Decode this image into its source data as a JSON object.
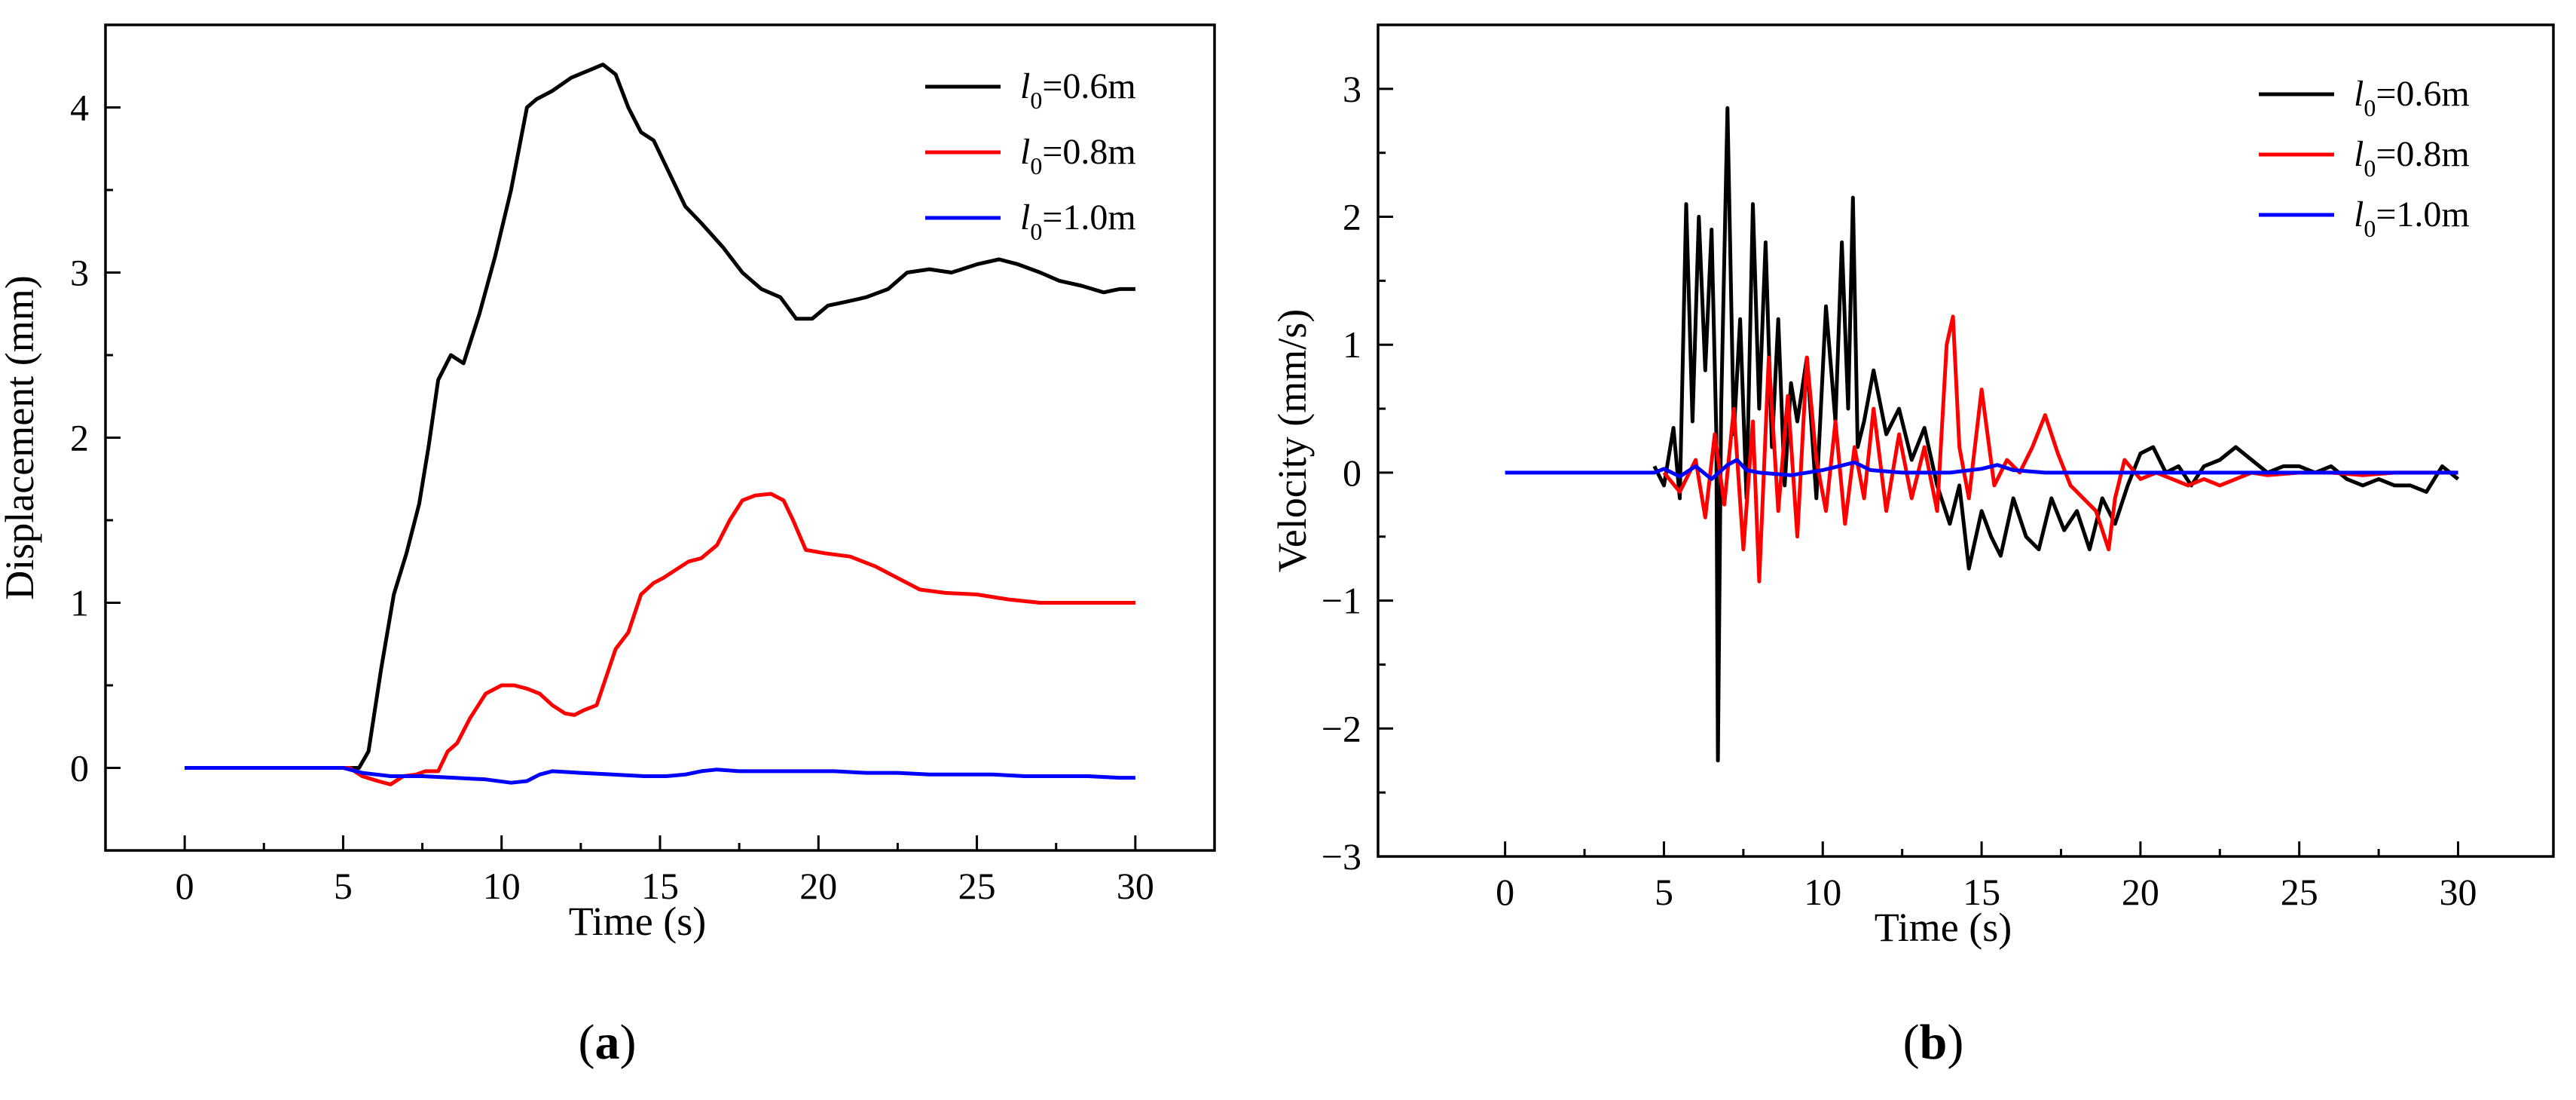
{
  "chart_data": [
    {
      "type": "line",
      "panel_label": "a",
      "xlabel": "Time (s)",
      "ylabel": "Displacement (mm)",
      "xlim": [
        -2.5,
        32.5
      ],
      "ylim": [
        -0.5,
        4.5
      ],
      "xticks": [
        0,
        5,
        10,
        15,
        20,
        25,
        30
      ],
      "yticks": [
        0,
        1,
        2,
        3,
        4
      ],
      "legend_position": "top-right",
      "series": [
        {
          "name": "l0=0.6m",
          "label_main": "l",
          "label_sub": "0",
          "label_rest": "=0.6m",
          "color": "#000000",
          "x": [
            0,
            5.5,
            5.8,
            6.2,
            6.6,
            7,
            7.4,
            7.7,
            8,
            8.4,
            8.8,
            9.3,
            9.8,
            10.3,
            10.8,
            11.1,
            11.6,
            12.2,
            12.7,
            13.2,
            13.6,
            14,
            14.4,
            14.8,
            15.3,
            15.8,
            16.3,
            17,
            17.6,
            18.2,
            18.8,
            19.3,
            19.8,
            20.3,
            20.8,
            21.5,
            22.2,
            22.8,
            23.5,
            24.2,
            25,
            25.7,
            26.3,
            27,
            27.6,
            28.3,
            29,
            29.5,
            30
          ],
          "y": [
            0,
            0,
            0.1,
            0.6,
            1.05,
            1.3,
            1.6,
            1.95,
            2.35,
            2.5,
            2.45,
            2.75,
            3.1,
            3.5,
            4.0,
            4.05,
            4.1,
            4.18,
            4.22,
            4.26,
            4.2,
            4.0,
            3.85,
            3.8,
            3.6,
            3.4,
            3.3,
            3.15,
            3.0,
            2.9,
            2.85,
            2.72,
            2.72,
            2.8,
            2.82,
            2.85,
            2.9,
            3.0,
            3.02,
            3.0,
            3.05,
            3.08,
            3.05,
            3.0,
            2.95,
            2.92,
            2.88,
            2.9,
            2.9
          ]
        },
        {
          "name": "l0=0.8m",
          "label_main": "l",
          "label_sub": "0",
          "label_rest": "=0.8m",
          "color": "#ff0000",
          "x": [
            0,
            5.2,
            5.6,
            6.1,
            6.5,
            6.9,
            7.3,
            7.6,
            8.0,
            8.3,
            8.6,
            9.0,
            9.5,
            10.0,
            10.4,
            10.8,
            11.2,
            11.6,
            12.0,
            12.3,
            12.6,
            13.0,
            13.3,
            13.6,
            14.0,
            14.4,
            14.8,
            15.1,
            15.5,
            15.9,
            16.3,
            16.8,
            17.2,
            17.6,
            18.0,
            18.5,
            18.9,
            19.2,
            19.6,
            20.2,
            21.0,
            21.8,
            22.5,
            23.2,
            24.0,
            25.0,
            26.0,
            27.0,
            28.0,
            29.0,
            30.0
          ],
          "y": [
            0,
            0,
            -0.05,
            -0.08,
            -0.1,
            -0.05,
            -0.04,
            -0.02,
            -0.02,
            0.1,
            0.15,
            0.3,
            0.45,
            0.5,
            0.5,
            0.48,
            0.45,
            0.38,
            0.33,
            0.32,
            0.35,
            0.38,
            0.55,
            0.72,
            0.82,
            1.05,
            1.12,
            1.15,
            1.2,
            1.25,
            1.27,
            1.35,
            1.5,
            1.62,
            1.65,
            1.66,
            1.62,
            1.5,
            1.32,
            1.3,
            1.28,
            1.22,
            1.15,
            1.08,
            1.06,
            1.05,
            1.02,
            1.0,
            1.0,
            1.0,
            1.0
          ]
        },
        {
          "name": "l0=1.0m",
          "label_main": "l",
          "label_sub": "0",
          "label_rest": "=1.0m",
          "color": "#0000ff",
          "x": [
            0,
            5.0,
            5.6,
            6.5,
            7.5,
            8.5,
            9.5,
            10.3,
            10.8,
            11.2,
            11.6,
            12.5,
            13.5,
            14.5,
            15.2,
            15.8,
            16.3,
            16.8,
            17.5,
            18.5,
            19.5,
            20.5,
            21.5,
            22.5,
            23.5,
            24.5,
            25.5,
            26.5,
            27.5,
            28.5,
            29.5,
            30.0
          ],
          "y": [
            0,
            0,
            -0.03,
            -0.05,
            -0.05,
            -0.06,
            -0.07,
            -0.09,
            -0.08,
            -0.04,
            -0.02,
            -0.03,
            -0.04,
            -0.05,
            -0.05,
            -0.04,
            -0.02,
            -0.01,
            -0.02,
            -0.02,
            -0.02,
            -0.02,
            -0.03,
            -0.03,
            -0.04,
            -0.04,
            -0.04,
            -0.05,
            -0.05,
            -0.05,
            -0.06,
            -0.06
          ]
        }
      ]
    },
    {
      "type": "line",
      "panel_label": "b",
      "xlabel": "Time (s)",
      "ylabel": "Velocity (mm/s)",
      "xlim": [
        -4,
        33
      ],
      "ylim": [
        -3,
        3.5
      ],
      "xticks": [
        0,
        5,
        10,
        15,
        20,
        25,
        30
      ],
      "yticks": [
        -3,
        -2,
        -1,
        0,
        1,
        2,
        3
      ],
      "legend_position": "top-right",
      "series": [
        {
          "name": "l0=0.6m",
          "label_main": "l",
          "label_sub": "0",
          "label_rest": "=0.6m",
          "color": "#000000",
          "x": [
            4.7,
            5.0,
            5.3,
            5.5,
            5.7,
            5.9,
            6.1,
            6.3,
            6.5,
            6.65,
            6.7,
            6.8,
            7.0,
            7.2,
            7.4,
            7.6,
            7.8,
            8.0,
            8.2,
            8.4,
            8.6,
            8.8,
            9.0,
            9.2,
            9.5,
            9.8,
            10.1,
            10.4,
            10.6,
            10.8,
            10.95,
            11.1,
            11.3,
            11.6,
            12.0,
            12.4,
            12.8,
            13.2,
            13.6,
            14.0,
            14.3,
            14.6,
            15.0,
            15.3,
            15.6,
            16.0,
            16.4,
            16.8,
            17.2,
            17.6,
            18.0,
            18.4,
            18.8,
            19.2,
            19.6,
            20.0,
            20.4,
            20.8,
            21.2,
            21.6,
            22.0,
            22.5,
            23.0,
            23.5,
            24.0,
            24.5,
            25.0,
            25.5,
            26.0,
            26.5,
            27.0,
            27.5,
            28.0,
            28.5,
            29.0,
            29.5,
            30.0
          ],
          "y": [
            0.05,
            -0.1,
            0.35,
            -0.2,
            2.1,
            0.4,
            2.0,
            0.8,
            1.9,
            0.3,
            -2.25,
            0.5,
            2.85,
            0.3,
            1.2,
            -0.2,
            2.1,
            0.5,
            1.8,
            0.2,
            1.2,
            -0.1,
            0.7,
            0.4,
            0.9,
            -0.2,
            1.3,
            0.4,
            1.8,
            0.5,
            2.15,
            0.2,
            0.4,
            0.8,
            0.3,
            0.5,
            0.1,
            0.35,
            -0.1,
            -0.4,
            -0.1,
            -0.75,
            -0.3,
            -0.5,
            -0.65,
            -0.2,
            -0.5,
            -0.6,
            -0.2,
            -0.45,
            -0.3,
            -0.6,
            -0.2,
            -0.4,
            -0.1,
            0.15,
            0.2,
            0.0,
            0.05,
            -0.1,
            0.05,
            0.1,
            0.2,
            0.1,
            0.0,
            0.05,
            0.05,
            0.0,
            0.05,
            -0.05,
            -0.1,
            -0.05,
            -0.1,
            -0.1,
            -0.15,
            0.05,
            -0.05
          ]
        },
        {
          "name": "l0=0.8m",
          "label_main": "l",
          "label_sub": "0",
          "label_rest": "=0.8m",
          "color": "#ff0000",
          "x": [
            5.0,
            5.5,
            6.0,
            6.3,
            6.6,
            6.9,
            7.2,
            7.5,
            7.8,
            8.0,
            8.3,
            8.6,
            8.9,
            9.2,
            9.5,
            9.8,
            10.1,
            10.4,
            10.7,
            11.0,
            11.3,
            11.6,
            12.0,
            12.4,
            12.8,
            13.2,
            13.6,
            13.9,
            14.1,
            14.3,
            14.6,
            15.0,
            15.4,
            15.8,
            16.2,
            16.6,
            17.0,
            17.4,
            17.8,
            18.2,
            18.6,
            19.0,
            19.2,
            19.5,
            20.0,
            20.5,
            21.0,
            21.5,
            22.0,
            22.5,
            23.0,
            23.5,
            24.0,
            25.0,
            26.0,
            27.0,
            28.0,
            29.0,
            30.0
          ],
          "y": [
            0,
            -0.15,
            0.1,
            -0.35,
            0.3,
            -0.25,
            0.5,
            -0.6,
            0.4,
            -0.85,
            0.9,
            -0.3,
            0.6,
            -0.5,
            0.9,
            0.1,
            -0.3,
            0.4,
            -0.4,
            0.2,
            -0.2,
            0.5,
            -0.3,
            0.3,
            -0.2,
            0.2,
            -0.3,
            1.0,
            1.22,
            0.2,
            -0.2,
            0.65,
            -0.1,
            0.1,
            0.0,
            0.2,
            0.45,
            0.15,
            -0.1,
            -0.2,
            -0.3,
            -0.6,
            -0.2,
            0.1,
            -0.05,
            0.0,
            -0.05,
            -0.1,
            -0.05,
            -0.1,
            -0.05,
            0.0,
            -0.02,
            0.0,
            0.0,
            -0.02,
            0.0,
            0.0,
            0.0
          ]
        },
        {
          "name": "l0=1.0m",
          "label_main": "l",
          "label_sub": "0",
          "label_rest": "=1.0m",
          "color": "#0000ff",
          "x": [
            0,
            4.7,
            5.0,
            5.5,
            6.0,
            6.5,
            7.0,
            7.3,
            7.6,
            8.0,
            9.0,
            10.0,
            10.5,
            11.0,
            11.5,
            12.5,
            14.0,
            15.0,
            15.5,
            16.0,
            17.0,
            18.0,
            20.0,
            22.0,
            25.0,
            28.0,
            30.0
          ],
          "y": [
            0,
            0,
            0.03,
            -0.03,
            0.05,
            -0.05,
            0.06,
            0.1,
            0.02,
            0.0,
            -0.02,
            0.02,
            0.05,
            0.08,
            0.02,
            0.0,
            0.0,
            0.03,
            0.06,
            0.02,
            0.0,
            0.0,
            0.0,
            0.0,
            0.0,
            0.0,
            0.0
          ]
        }
      ]
    }
  ],
  "captions": [
    {
      "open": "(",
      "letter": "a",
      "close": ")"
    },
    {
      "open": "(",
      "letter": "b",
      "close": ")"
    }
  ]
}
